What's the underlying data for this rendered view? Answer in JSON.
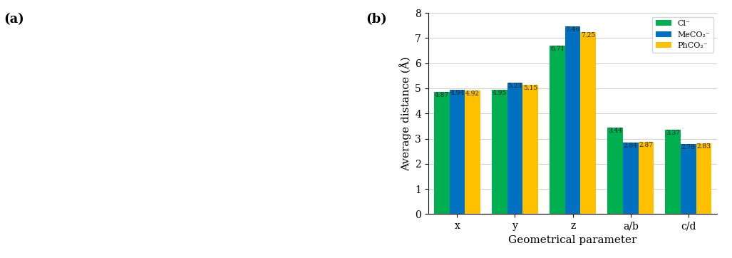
{
  "panel_labels": [
    "(a)",
    "(b)"
  ],
  "chart_data": {
    "type": "bar",
    "x_label": "Geometrical parameter",
    "y_label": "Average distance (Å)",
    "categories": [
      "x",
      "y",
      "z",
      "a/b",
      "c/d"
    ],
    "series": [
      {
        "name": "Cl⁻",
        "color": "#00b050",
        "values": [
          4.87,
          4.95,
          6.71,
          3.44,
          3.37
        ]
      },
      {
        "name": "MeCO₂⁻",
        "color": "#0070c0",
        "values": [
          4.94,
          5.23,
          7.46,
          2.84,
          2.78
        ]
      },
      {
        "name": "PhCO₂⁻",
        "color": "#ffc000",
        "values": [
          4.92,
          5.15,
          7.25,
          2.87,
          2.83
        ]
      }
    ],
    "ylim": [
      0,
      8
    ],
    "yticks": [
      0,
      1,
      2,
      3,
      4,
      5,
      6,
      7,
      8
    ],
    "grid": true,
    "legend": "upper right",
    "data_labels": true
  }
}
